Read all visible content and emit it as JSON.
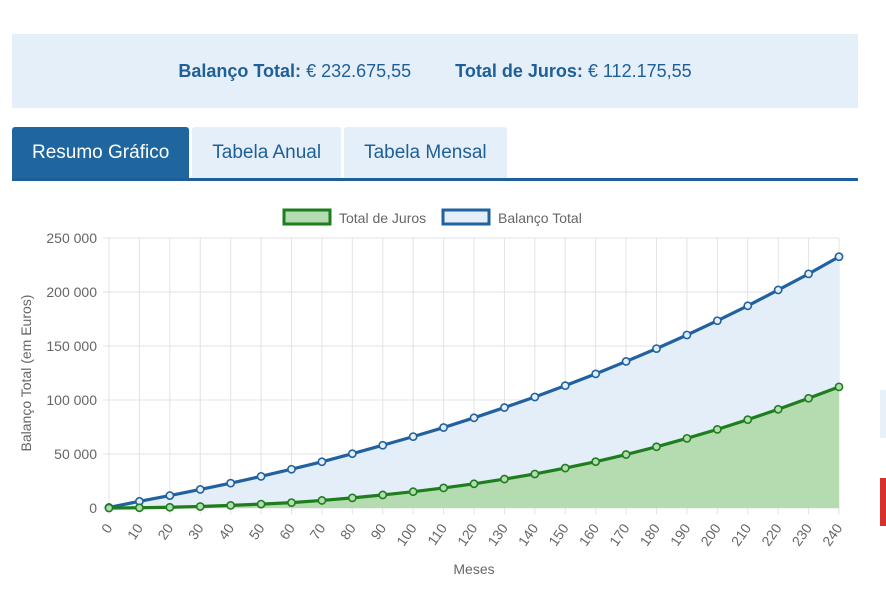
{
  "summary": {
    "balance_label": "Balanço Total:",
    "balance_value": "€ 232.675,55",
    "interest_label": "Total de Juros:",
    "interest_value": "€ 112.175,55"
  },
  "tabs": [
    {
      "label": "Resumo Gráfico",
      "active": true
    },
    {
      "label": "Tabela Anual",
      "active": false
    },
    {
      "label": "Tabela Mensal",
      "active": false
    }
  ],
  "colors": {
    "primary": "#1f669e",
    "tab_bg": "#e4eff9",
    "interest_line": "#1e7e1e",
    "interest_fill": "#b5dbb0",
    "balance_line": "#2161a0",
    "balance_fill": "#e3eef9"
  },
  "chart_data": {
    "type": "area",
    "xlabel": "Meses",
    "ylabel": "Balanço Total (em Euros)",
    "xlim": [
      0,
      240
    ],
    "ylim": [
      0,
      250000
    ],
    "yticks": [
      "0",
      "50 000",
      "100 000",
      "150 000",
      "200 000",
      "250 000"
    ],
    "grid": true,
    "legend_position": "top",
    "x": [
      0,
      10,
      20,
      30,
      40,
      50,
      60,
      70,
      80,
      90,
      100,
      110,
      120,
      130,
      140,
      150,
      160,
      170,
      180,
      190,
      200,
      210,
      220,
      230,
      240
    ],
    "series": [
      {
        "name": "Total de Juros",
        "values": [
          0,
          200,
          700,
          1400,
          2400,
          3600,
          5000,
          7000,
          9400,
          12100,
          15100,
          18600,
          22400,
          26800,
          31500,
          37000,
          42900,
          49500,
          56700,
          64500,
          72800,
          81800,
          91400,
          101600,
          112176
        ]
      },
      {
        "name": "Balanço Total",
        "values": [
          500,
          6200,
          11500,
          17200,
          23000,
          29300,
          35900,
          42800,
          50300,
          58100,
          66100,
          74500,
          83500,
          93000,
          102800,
          113300,
          124200,
          135700,
          147600,
          160200,
          173400,
          187200,
          201900,
          216800,
          232676
        ]
      }
    ]
  }
}
